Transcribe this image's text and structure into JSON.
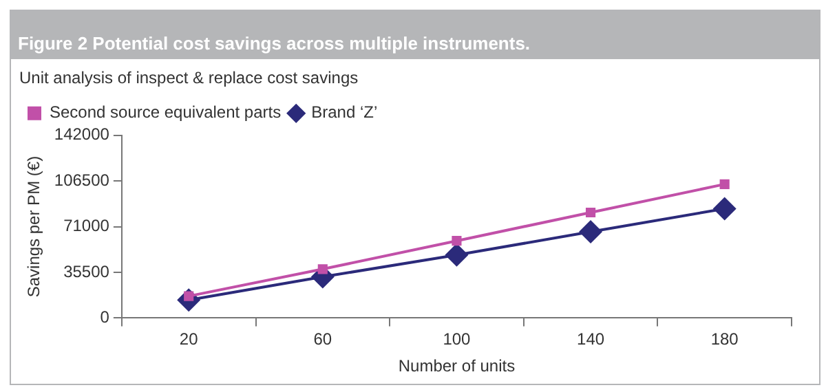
{
  "chart_data": {
    "type": "line",
    "title": "Figure 2 Potential cost savings across multiple instruments.",
    "subtitle": "Unit analysis of inspect & replace cost savings",
    "xlabel": "Number of units",
    "ylabel": "Savings per PM (€)",
    "categories": [
      "20",
      "60",
      "100",
      "140",
      "180"
    ],
    "series": [
      {
        "name": "Second source equivalent parts",
        "color": "#c150a8",
        "marker": "square",
        "values": [
          17000,
          38000,
          60000,
          82000,
          104000
        ]
      },
      {
        "name": "Brand ‘Z’",
        "color": "#2b2a7a",
        "marker": "diamond",
        "values": [
          14000,
          32000,
          49000,
          67000,
          85000
        ]
      }
    ],
    "ylim": [
      0,
      142000
    ],
    "yticks": [
      0,
      35500,
      71000,
      106500,
      142000
    ],
    "grid": false,
    "legend": "top left",
    "line_style": "solid"
  }
}
